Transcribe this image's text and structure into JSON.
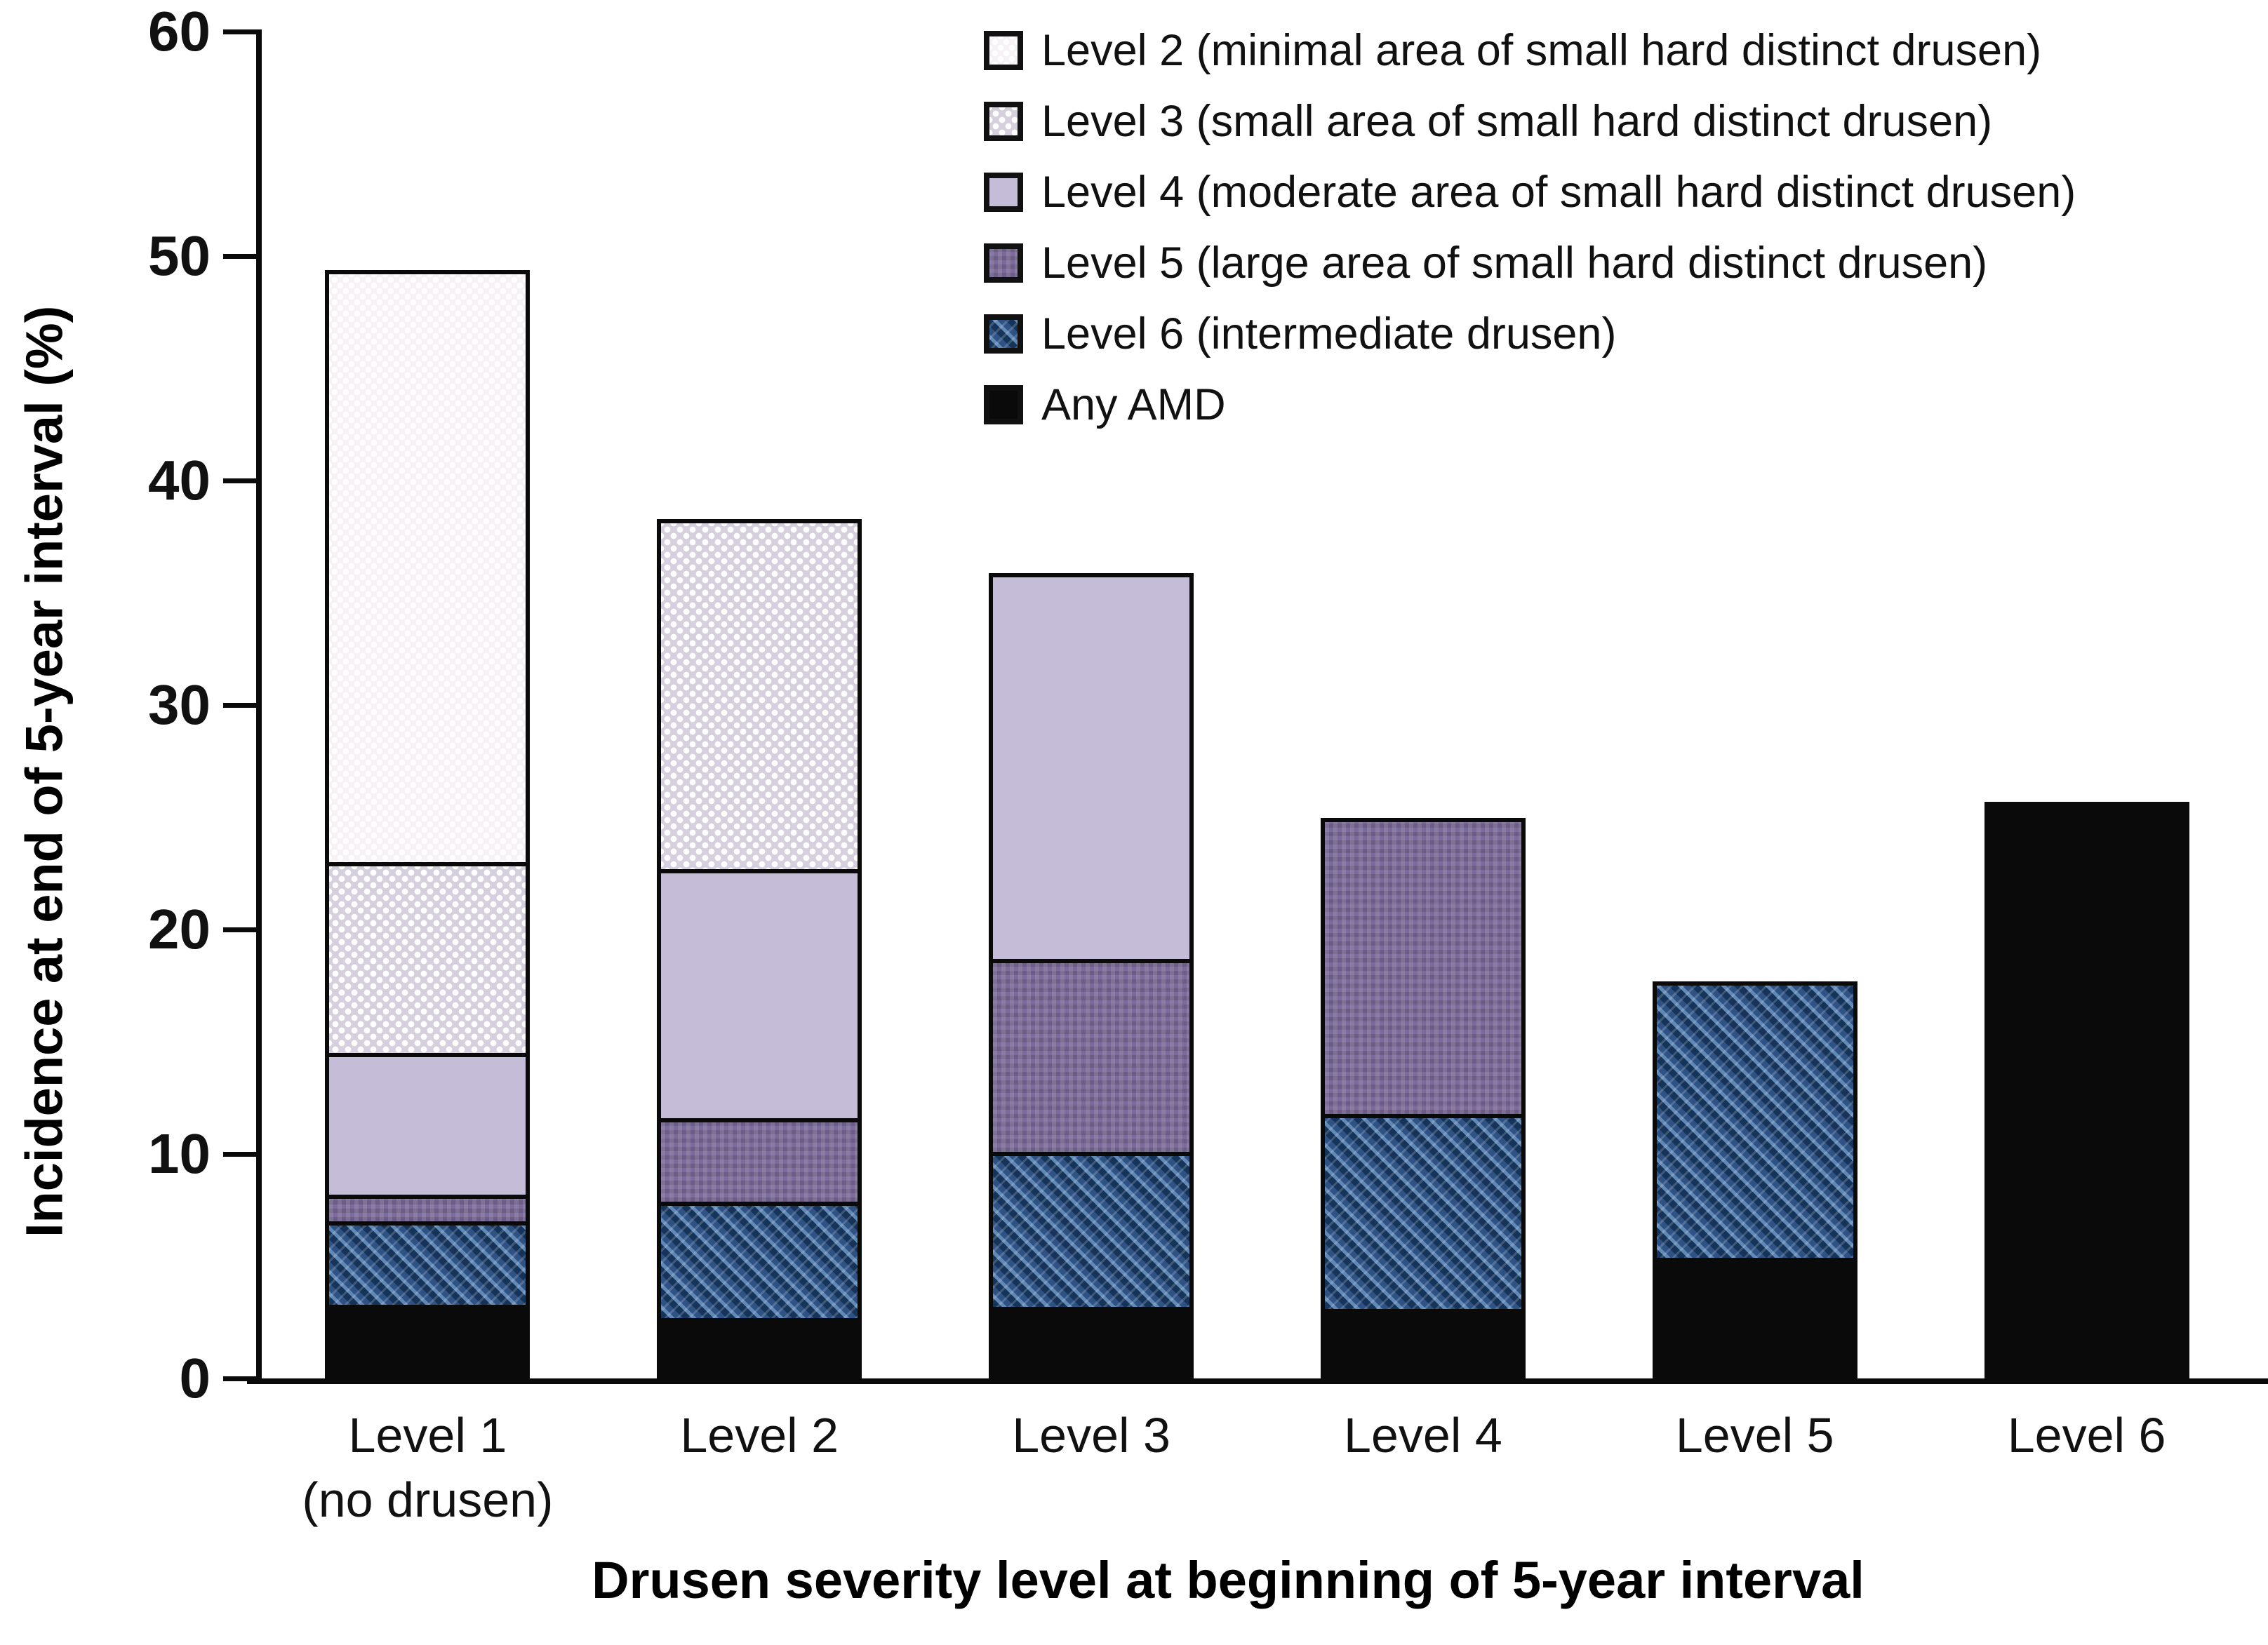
{
  "chart_data": {
    "type": "bar",
    "stacked": true,
    "title": "",
    "xlabel": "Drusen severity level at beginning of 5-year interval",
    "ylabel": "Incidence at end of 5-year interval (%)",
    "ylim": [
      0,
      60
    ],
    "yticks": [
      0,
      10,
      20,
      30,
      40,
      50,
      60
    ],
    "grid": false,
    "legend_position": "top-right",
    "categories": [
      {
        "label": "Level 1",
        "sublabel": "(no drusen)"
      },
      {
        "label": "Level 2",
        "sublabel": ""
      },
      {
        "label": "Level 3",
        "sublabel": ""
      },
      {
        "label": "Level 4",
        "sublabel": ""
      },
      {
        "label": "Level 5",
        "sublabel": ""
      },
      {
        "label": "Level 6",
        "sublabel": ""
      }
    ],
    "series_bottom_to_top": [
      {
        "name": "Any AMD",
        "pattern": "solid-black",
        "color": "#0a0a0a",
        "values": [
          3.1,
          2.5,
          3.0,
          2.9,
          5.2,
          25.3
        ]
      },
      {
        "name": "Level 6 (intermediate drusen)",
        "pattern": "blue-diagonal-hatch",
        "color": "#3a5d88",
        "values": [
          3.7,
          5.2,
          6.9,
          8.7,
          12.1,
          0
        ]
      },
      {
        "name": "Level 5 (large area of small hard distinct drusen)",
        "pattern": "purple-check",
        "color": "#7b6a9a",
        "values": [
          1.2,
          3.7,
          8.6,
          13.0,
          0,
          0
        ]
      },
      {
        "name": "Level 4 (moderate area of small hard distinct drusen)",
        "pattern": "solid-light-purple",
        "color": "#c5bcd8",
        "values": [
          6.3,
          11.1,
          17.0,
          0,
          0,
          0
        ]
      },
      {
        "name": "Level 3 (small area of small hard distinct drusen)",
        "pattern": "lavender-dot",
        "color": "#ddd6e3",
        "values": [
          8.5,
          15.4,
          0,
          0,
          0,
          0
        ]
      },
      {
        "name": "Level 2 (minimal area of small hard distinct drusen)",
        "pattern": "white-dot",
        "color": "#f7f2f6",
        "values": [
          26.2,
          0,
          0,
          0,
          0,
          0
        ]
      }
    ],
    "bar_totals": [
      49.0,
      37.9,
      35.5,
      24.6,
      17.3,
      25.3
    ],
    "legend_order_top_to_bottom": [
      "Level 2 (minimal area of small hard distinct drusen)",
      "Level 3 (small area of small hard distinct drusen)",
      "Level 4 (moderate area of small hard distinct drusen)",
      "Level 5 (large area of small hard distinct drusen)",
      "Level 6 (intermediate drusen)",
      "Any AMD"
    ]
  }
}
